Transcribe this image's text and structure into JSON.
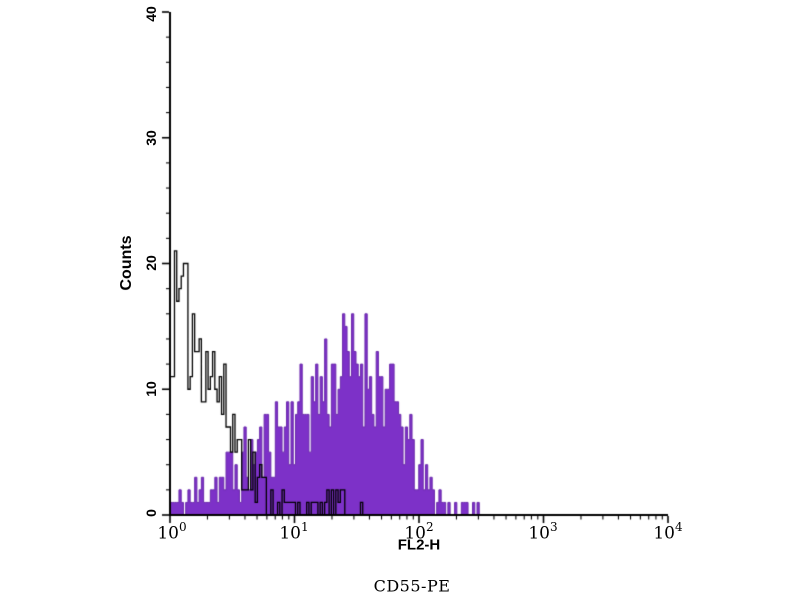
{
  "chart_data": {
    "type": "area",
    "chart_kind": "flow-cytometry-overlay-histogram",
    "title": "CD55-PE",
    "xlabel": "FL2-H",
    "ylabel": "Counts",
    "x_scale": "log10",
    "xlim": [
      1,
      10000
    ],
    "ylim": [
      0,
      40
    ],
    "x_ticks": [
      {
        "base": "10",
        "exp": "0"
      },
      {
        "base": "10",
        "exp": "1"
      },
      {
        "base": "10",
        "exp": "2"
      },
      {
        "base": "10",
        "exp": "3"
      },
      {
        "base": "10",
        "exp": "4"
      }
    ],
    "x_minor_tick_multiples": [
      2,
      3,
      4,
      5,
      6,
      7,
      8,
      9
    ],
    "y_ticks": [
      0,
      10,
      20,
      30,
      40
    ],
    "y_minor_tick_step": 2,
    "grid": false,
    "legend": "none",
    "axis_color": "#000000",
    "background_color": "#ffffff",
    "bin_log_width": 0.018,
    "noise_seed": 11,
    "noise_factor": 1.35,
    "series": [
      {
        "name": "filled_histogram",
        "style": "filled",
        "fill_color": "#7d31c8",
        "line_color": "#6a28ab",
        "peak_log10_x": 1.5,
        "peak_count": 18,
        "envelope_log10x_count": [
          [
            0.0,
            0.8
          ],
          [
            0.1,
            1.2
          ],
          [
            0.2,
            1.6
          ],
          [
            0.3,
            2.1
          ],
          [
            0.4,
            2.6
          ],
          [
            0.5,
            3.2
          ],
          [
            0.6,
            4.0
          ],
          [
            0.7,
            5.0
          ],
          [
            0.8,
            6.0
          ],
          [
            0.9,
            7.0
          ],
          [
            1.0,
            7.8
          ],
          [
            1.1,
            8.8
          ],
          [
            1.2,
            10.0
          ],
          [
            1.3,
            11.0
          ],
          [
            1.4,
            12.0
          ],
          [
            1.5,
            12.5
          ],
          [
            1.6,
            11.8
          ],
          [
            1.7,
            10.5
          ],
          [
            1.8,
            8.5
          ],
          [
            1.9,
            5.8
          ],
          [
            2.0,
            3.6
          ],
          [
            2.1,
            1.9
          ],
          [
            2.2,
            0.9
          ],
          [
            2.35,
            0.5
          ],
          [
            2.5,
            0.25
          ],
          [
            2.58,
            0
          ]
        ]
      },
      {
        "name": "open_histogram",
        "style": "open",
        "fill_color": "none",
        "line_color": "#000000",
        "peak_log10_x": 0.05,
        "peak_count": 20,
        "envelope_log10x_count": [
          [
            0.0,
            15
          ],
          [
            0.05,
            16
          ],
          [
            0.12,
            15.5
          ],
          [
            0.2,
            14.5
          ],
          [
            0.28,
            13.5
          ],
          [
            0.33,
            12
          ],
          [
            0.38,
            10.5
          ],
          [
            0.43,
            9
          ],
          [
            0.48,
            7.5
          ],
          [
            0.53,
            6
          ],
          [
            0.58,
            5
          ],
          [
            0.63,
            4
          ],
          [
            0.68,
            3
          ],
          [
            0.74,
            2.2
          ],
          [
            0.8,
            1.6
          ],
          [
            0.9,
            0.9
          ],
          [
            1.0,
            0.5
          ],
          [
            1.2,
            0.4
          ],
          [
            1.28,
            1.1
          ],
          [
            1.38,
            0.7
          ],
          [
            1.48,
            0.2
          ],
          [
            1.55,
            0
          ]
        ]
      }
    ]
  }
}
